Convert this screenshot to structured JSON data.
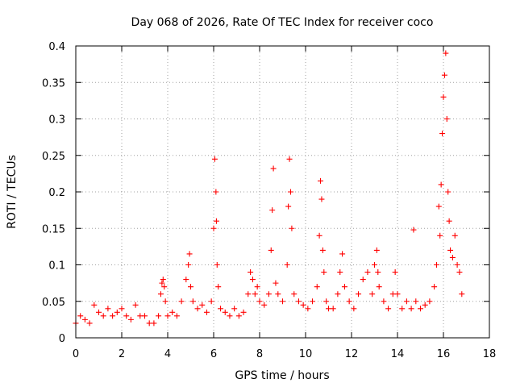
{
  "chart_data": {
    "type": "scatter",
    "title": "Day 068 of 2026, Rate Of TEC Index for receiver coco",
    "xlabel": "GPS time / hours",
    "ylabel": "ROTI / TECUs",
    "xlim": [
      0,
      18
    ],
    "ylim": [
      0,
      0.4
    ],
    "xticks": [
      0,
      2,
      4,
      6,
      8,
      10,
      12,
      14,
      16,
      18
    ],
    "xtick_labels": [
      "0",
      "2",
      "4",
      "6",
      "8",
      "10",
      "12",
      "14",
      "16",
      "18"
    ],
    "yticks": [
      0,
      0.05,
      0.1,
      0.15,
      0.2,
      0.25,
      0.3,
      0.35,
      0.4
    ],
    "ytick_labels": [
      "0",
      "0.05",
      "0.1",
      "0.15",
      "0.2",
      "0.25",
      "0.3",
      "0.35",
      "0.4"
    ],
    "grid": true,
    "marker": "+",
    "marker_color": "#ff0000",
    "data_time_range_hours": [
      0,
      16.85
    ],
    "series": [
      {
        "name": "ROTI",
        "x": [
          0.0,
          0.2,
          0.4,
          0.6,
          0.8,
          1.0,
          1.2,
          1.4,
          1.6,
          1.8,
          2.0,
          2.2,
          2.4,
          2.6,
          2.8,
          3.0,
          3.2,
          3.4,
          3.6,
          3.7,
          3.75,
          3.8,
          3.85,
          3.9,
          4.0,
          4.2,
          4.4,
          4.6,
          4.8,
          4.9,
          4.95,
          5.0,
          5.1,
          5.3,
          5.5,
          5.7,
          5.9,
          6.0,
          6.05,
          6.1,
          6.12,
          6.15,
          6.2,
          6.3,
          6.5,
          6.7,
          6.9,
          7.1,
          7.3,
          7.5,
          7.6,
          7.7,
          7.8,
          7.9,
          8.0,
          8.2,
          8.4,
          8.5,
          8.55,
          8.6,
          8.7,
          8.8,
          9.0,
          9.2,
          9.25,
          9.3,
          9.35,
          9.4,
          9.5,
          9.7,
          9.9,
          10.1,
          10.3,
          10.5,
          10.6,
          10.65,
          10.7,
          10.75,
          10.8,
          10.9,
          11.0,
          11.2,
          11.4,
          11.5,
          11.6,
          11.7,
          11.9,
          12.1,
          12.3,
          12.5,
          12.7,
          12.9,
          13.0,
          13.1,
          13.15,
          13.2,
          13.4,
          13.6,
          13.8,
          13.9,
          14.0,
          14.2,
          14.4,
          14.6,
          14.7,
          14.8,
          15.0,
          15.2,
          15.4,
          15.6,
          15.7,
          15.8,
          15.85,
          15.9,
          15.95,
          16.0,
          16.05,
          16.1,
          16.15,
          16.2,
          16.25,
          16.3,
          16.4,
          16.5,
          16.6,
          16.7,
          16.8
        ],
        "y": [
          0.02,
          0.03,
          0.025,
          0.02,
          0.045,
          0.035,
          0.03,
          0.04,
          0.03,
          0.035,
          0.04,
          0.03,
          0.025,
          0.045,
          0.03,
          0.03,
          0.02,
          0.02,
          0.03,
          0.06,
          0.075,
          0.08,
          0.07,
          0.05,
          0.03,
          0.035,
          0.03,
          0.05,
          0.08,
          0.1,
          0.115,
          0.07,
          0.05,
          0.04,
          0.045,
          0.035,
          0.05,
          0.15,
          0.245,
          0.2,
          0.16,
          0.1,
          0.07,
          0.04,
          0.035,
          0.03,
          0.04,
          0.03,
          0.035,
          0.06,
          0.09,
          0.08,
          0.06,
          0.07,
          0.05,
          0.045,
          0.06,
          0.12,
          0.175,
          0.232,
          0.075,
          0.06,
          0.05,
          0.1,
          0.18,
          0.245,
          0.2,
          0.15,
          0.06,
          0.05,
          0.045,
          0.04,
          0.05,
          0.07,
          0.14,
          0.215,
          0.19,
          0.12,
          0.09,
          0.05,
          0.04,
          0.04,
          0.06,
          0.09,
          0.115,
          0.07,
          0.05,
          0.04,
          0.06,
          0.08,
          0.09,
          0.06,
          0.1,
          0.12,
          0.09,
          0.07,
          0.05,
          0.04,
          0.06,
          0.09,
          0.06,
          0.04,
          0.05,
          0.04,
          0.148,
          0.05,
          0.04,
          0.045,
          0.05,
          0.07,
          0.1,
          0.18,
          0.14,
          0.21,
          0.28,
          0.33,
          0.36,
          0.39,
          0.3,
          0.2,
          0.16,
          0.12,
          0.11,
          0.14,
          0.1,
          0.09,
          0.06
        ]
      }
    ]
  }
}
